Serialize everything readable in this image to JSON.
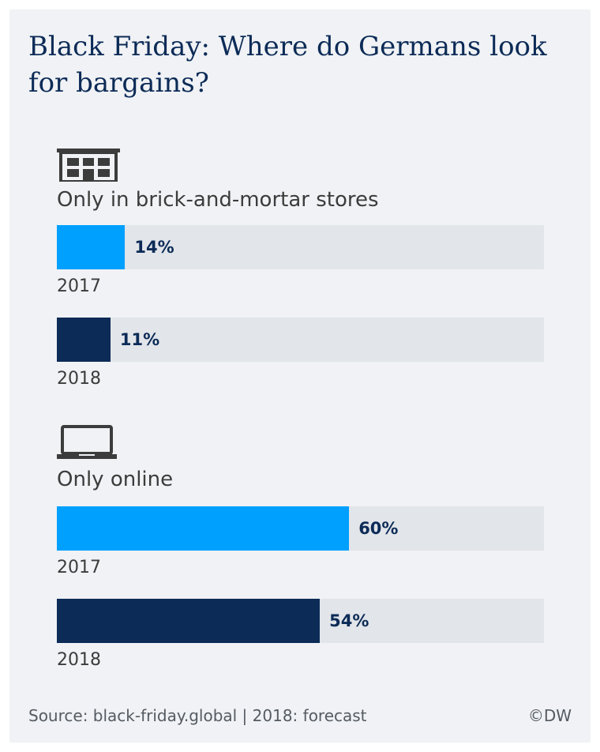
{
  "title": "Black Friday: Where do Germans look for bargains?",
  "colors": {
    "y2017": "#00a0ff",
    "y2018": "#0c2b57",
    "track": "#e2e5e9"
  },
  "chart_data": {
    "type": "bar",
    "orientation": "horizontal",
    "title": "Black Friday: Where do Germans look for bargains?",
    "unit": "%",
    "xlim": [
      0,
      100
    ],
    "groups": [
      {
        "name": "Only in brick-and-mortar stores",
        "icon": "store-icon",
        "bars": [
          {
            "year": "2017",
            "value": 14,
            "label": "14%"
          },
          {
            "year": "2018",
            "value": 11,
            "label": "11%"
          }
        ]
      },
      {
        "name": "Only online",
        "icon": "laptop-icon",
        "bars": [
          {
            "year": "2017",
            "value": 60,
            "label": "60%"
          },
          {
            "year": "2018",
            "value": 54,
            "label": "54%"
          }
        ]
      }
    ]
  },
  "footer": {
    "source": "Source: black-friday.global | 2018: forecast",
    "brand": "©DW"
  }
}
